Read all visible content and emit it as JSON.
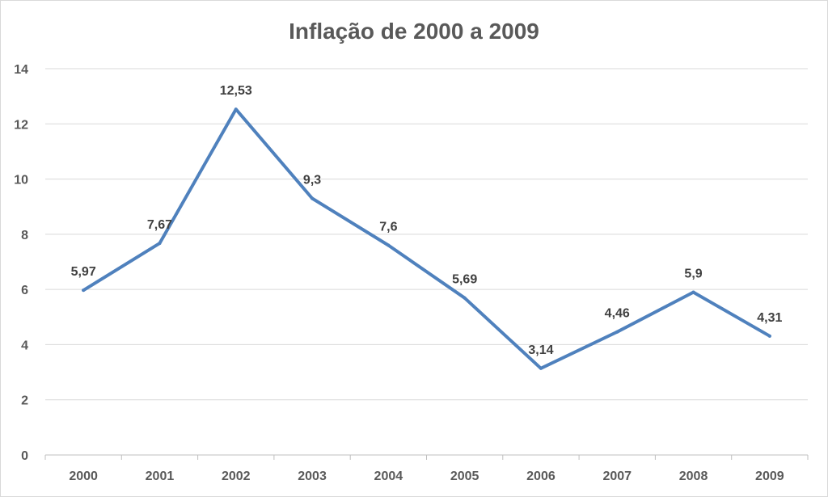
{
  "chart_data": {
    "type": "line",
    "title": "Inflação de 2000 a 2009",
    "xlabel": "",
    "ylabel": "",
    "categories": [
      "2000",
      "2001",
      "2002",
      "2003",
      "2004",
      "2005",
      "2006",
      "2007",
      "2008",
      "2009"
    ],
    "series": [
      {
        "values": [
          5.97,
          7.67,
          12.53,
          9.3,
          7.6,
          5.69,
          3.14,
          4.46,
          5.9,
          4.31
        ],
        "labels": [
          "5,97",
          "7,67",
          "12,53",
          "9,3",
          "7,6",
          "5,69",
          "3,14",
          "4,46",
          "5,9",
          "4,31"
        ],
        "color": "#4f81bd"
      }
    ],
    "ylim": [
      0,
      14
    ],
    "yticks": [
      "0",
      "2",
      "4",
      "6",
      "8",
      "10",
      "12",
      "14"
    ],
    "grid": true,
    "legend": "none"
  }
}
